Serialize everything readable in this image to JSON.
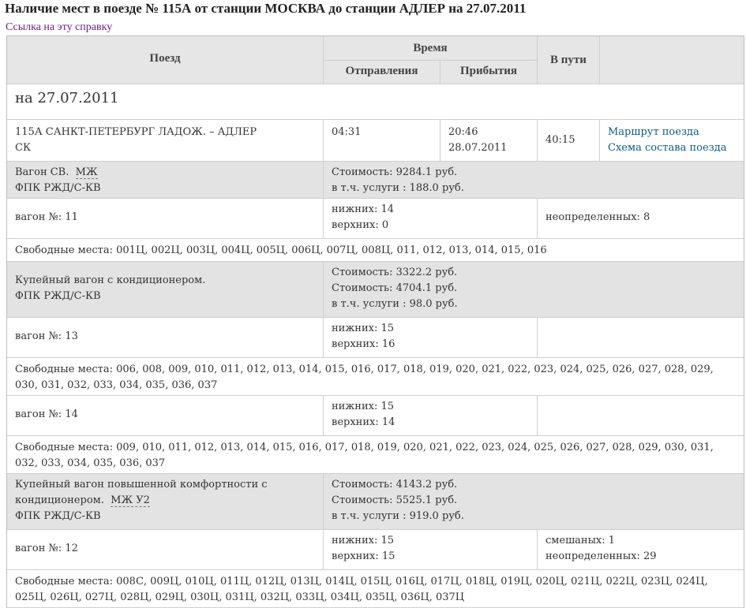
{
  "title": "Наличие мест в поезде № 115А от станции МОСКВА до станции АДЛЕР на 27.07.2011",
  "ref_link": "Ссылка на эту справку",
  "header": {
    "train": "Поезд",
    "time": "Время",
    "departure": "Отправления",
    "arrival": "Прибытия",
    "duration": "В пути"
  },
  "date_heading": "на 27.07.2011",
  "train": {
    "name": "115А САНКТ-ПЕТЕРБУРГ ЛАДОЖ. – АДЛЕР",
    "type": "СК",
    "departure": "04:31",
    "arrival_time": "20:46",
    "arrival_date": "28.07.2011",
    "duration": "40:15",
    "route_link": "Маршрут поезда",
    "scheme_link": "Схема состава поезда"
  },
  "classes": [
    {
      "name": "Вагон СВ.",
      "badge": "МЖ",
      "carrier": "ФПК РЖД/С-КВ",
      "prices": [
        "Стоимость: 9284.1 руб."
      ],
      "service": "в т.ч. услуги : 188.0 руб.",
      "cars": [
        {
          "label": "вагон №: 11",
          "lower": "нижних: 14",
          "upper": "верхних: 0",
          "extra1": "неопределенных: 8",
          "extra2": "",
          "free": "Свободные места: 001Ц, 002Ц, 003Ц, 004Ц, 005Ц, 006Ц, 007Ц, 008Ц, 011, 012, 013, 014, 015, 016"
        }
      ]
    },
    {
      "name": "Купейный вагон с кондиционером.",
      "badge": "",
      "carrier": "ФПК РЖД/С-КВ",
      "prices": [
        "Стоимость: 3322.2 руб.",
        "Стоимость: 4704.1 руб."
      ],
      "service": "в т.ч. услуги : 98.0 руб.",
      "cars": [
        {
          "label": "вагон №: 13",
          "lower": "нижних: 15",
          "upper": "верхних: 16",
          "extra1": "",
          "extra2": "",
          "free": "Свободные места: 006, 008, 009, 010, 011, 012, 013, 014, 015, 016, 017, 018, 019, 020, 021, 022, 023, 024, 025, 026, 027, 028, 029, 030, 031, 032, 033, 034, 035, 036, 037"
        },
        {
          "label": "вагон №: 14",
          "lower": "нижних: 15",
          "upper": "верхних: 14",
          "extra1": "",
          "extra2": "",
          "free": "Свободные места: 009, 010, 011, 012, 013, 014, 015, 016, 017, 018, 019, 020, 021, 022, 023, 024, 025, 026, 027, 028, 029, 030, 031, 032, 033, 034, 035, 036, 037"
        }
      ]
    },
    {
      "name": "Купейный вагон повышенной комфортности с",
      "name2": "кондиционером.",
      "badge": "МЖ У2",
      "carrier": "ФПК РЖД/С-КВ",
      "prices": [
        "Стоимость: 4143.2 руб.",
        "Стоимость: 5525.1 руб."
      ],
      "service": "в т.ч. услуги : 919.0 руб.",
      "cars": [
        {
          "label": "вагон №: 12",
          "lower": "нижних: 15",
          "upper": "верхних: 15",
          "extra1": "смешаных: 1",
          "extra2": "неопределенных: 29",
          "free": "Свободные места: 008С, 009Ц, 010Ц, 011Ц, 012Ц, 013Ц, 014Ц, 015Ц, 016Ц, 017Ц, 018Ц, 019Ц, 020Ц, 021Ц, 022Ц, 023Ц, 024Ц, 025Ц, 026Ц, 027Ц, 028Ц, 029Ц, 030Ц, 031Ц, 032Ц, 033Ц, 034Ц, 035Ц, 036Ц, 037Ц"
        }
      ]
    }
  ]
}
